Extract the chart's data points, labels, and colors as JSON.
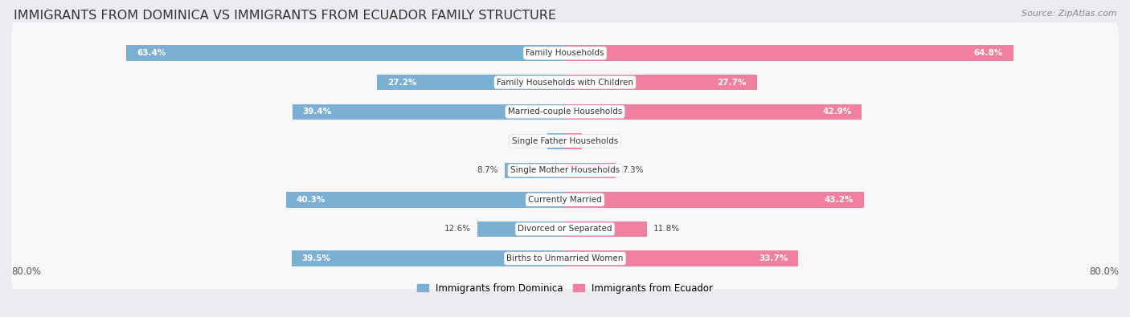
{
  "title": "IMMIGRANTS FROM DOMINICA VS IMMIGRANTS FROM ECUADOR FAMILY STRUCTURE",
  "source": "Source: ZipAtlas.com",
  "categories": [
    "Family Households",
    "Family Households with Children",
    "Married-couple Households",
    "Single Father Households",
    "Single Mother Households",
    "Currently Married",
    "Divorced or Separated",
    "Births to Unmarried Women"
  ],
  "dominica_values": [
    63.4,
    27.2,
    39.4,
    2.5,
    8.7,
    40.3,
    12.6,
    39.5
  ],
  "ecuador_values": [
    64.8,
    27.7,
    42.9,
    2.4,
    7.3,
    43.2,
    11.8,
    33.7
  ],
  "dominica_color": "#7BAFD4",
  "ecuador_color": "#F07FA0",
  "dominica_label": "Immigrants from Dominica",
  "ecuador_label": "Immigrants from Ecuador",
  "x_max": 80.0,
  "x_min": -80.0,
  "background_color": "#ebebf0",
  "row_bg_color": "#f8f8fb",
  "title_fontsize": 11.5,
  "source_fontsize": 8,
  "value_fontsize": 7.5,
  "cat_fontsize": 7.5,
  "legend_fontsize": 8.5,
  "axis_label_fontsize": 8.5
}
